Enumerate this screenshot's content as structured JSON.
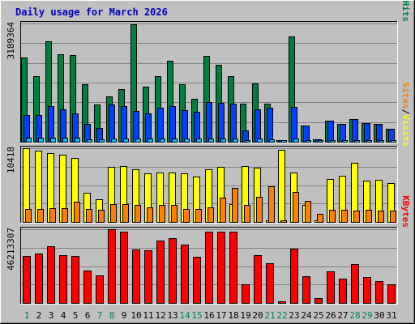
{
  "chart_data": {
    "type": "bar",
    "title": "Daily usage for March 2026",
    "days": [
      "1",
      "2",
      "3",
      "4",
      "5",
      "6",
      "7",
      "8",
      "9",
      "10",
      "11",
      "12",
      "13",
      "14",
      "15",
      "16",
      "17",
      "18",
      "19",
      "20",
      "21",
      "22",
      "23",
      "24",
      "25",
      "26",
      "27",
      "28",
      "29",
      "30",
      "31"
    ],
    "weekend_days": [
      1,
      7,
      8,
      14,
      15,
      21,
      22,
      28,
      29
    ],
    "panels": [
      {
        "id": "hits",
        "max_label": "3189364",
        "ymax": 3189364,
        "series": [
          {
            "name": "Hits",
            "color": "#008040",
            "values": [
              2280000,
              1760000,
              2710000,
              2370000,
              2330000,
              1550000,
              1000000,
              1230000,
              1420000,
              3170000,
              1490000,
              1760000,
              2180000,
              1550000,
              1160000,
              2310000,
              2080000,
              1760000,
              1030000,
              1570000,
              1020000,
              0,
              2830000,
              430000,
              60000,
              570000,
              470000,
              620000,
              510000,
              490000,
              360000
            ]
          },
          {
            "name": "Files",
            "color": "#0040ff",
            "values": [
              720000,
              730000,
              970000,
              870000,
              760000,
              480000,
              380000,
              1010000,
              970000,
              840000,
              770000,
              920000,
              970000,
              860000,
              800000,
              1060000,
              1050000,
              1030000,
              300000,
              870000,
              910000,
              0,
              930000,
              430000,
              60000,
              570000,
              470000,
              620000,
              510000,
              470000,
              360000
            ]
          },
          {
            "name": "Pages",
            "color": "#00c0ff",
            "values": [
              100000,
              100000,
              110000,
              100000,
              100000,
              70000,
              70000,
              90000,
              90000,
              80000,
              80000,
              80000,
              90000,
              80000,
              80000,
              80000,
              90000,
              80000,
              50000,
              80000,
              70000,
              0,
              90000,
              30000,
              10000,
              30000,
              30000,
              30000,
              30000,
              30000,
              30000
            ]
          }
        ],
        "legend": [
          "Pages",
          "/",
          "Files",
          "/",
          "Hits"
        ],
        "legend_colors": [
          "#00c0ff",
          "#000000",
          "#0040ff",
          "#000000",
          "#008040"
        ]
      },
      {
        "id": "visits",
        "max_label": "10418",
        "ymax": 10418,
        "series": [
          {
            "name": "Visits",
            "color": "#ffff00",
            "values": [
              10418,
              10050,
              9700,
              9530,
              9050,
              4080,
              3150,
              7770,
              7940,
              7430,
              6880,
              6930,
              6930,
              6850,
              6370,
              7480,
              7790,
              2520,
              7920,
              7660,
              0,
              10150,
              7040,
              2410,
              0,
              6100,
              6480,
              8360,
              5860,
              6010,
              5530
            ]
          },
          {
            "name": "Sites",
            "color": "#ff8000",
            "values": [
              1800,
              1860,
              1890,
              1910,
              2810,
              1790,
              1730,
              2470,
              2570,
              2390,
              2080,
              2420,
              2460,
              1860,
              1800,
              2040,
              3400,
              4820,
              2380,
              3540,
              5050,
              0,
              4200,
              2980,
              1140,
              1770,
              1720,
              1640,
              1720,
              1580,
              1560
            ]
          }
        ],
        "legend": [
          "Sites",
          "/",
          "Visits"
        ],
        "legend_colors": [
          "#ff8000",
          "#000000",
          "#ffff00"
        ]
      },
      {
        "id": "kbytes",
        "max_label": "46213307",
        "ymax": 46213307,
        "series": [
          {
            "name": "KBytes",
            "color": "#ff0000",
            "values": [
              29300000,
              31100000,
              35300000,
              30200000,
              29500000,
              20400000,
              17300000,
              46200000,
              44500000,
              33500000,
              33000000,
              39000000,
              40600000,
              36700000,
              29100000,
              44800000,
              44700000,
              44900000,
              11800000,
              30200000,
              25100000,
              0,
              33800000,
              16700000,
              3300000,
              19900000,
              15300000,
              24200000,
              16100000,
              13700000,
              11800000
            ]
          }
        ],
        "legend": [
          "KBytes"
        ],
        "legend_colors": [
          "#ff0000"
        ]
      }
    ]
  }
}
